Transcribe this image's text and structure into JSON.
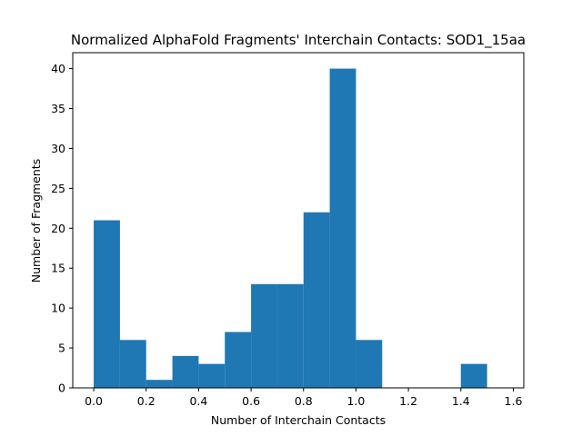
{
  "chart_data": {
    "type": "bar",
    "title": "Normalized AlphaFold Fragments' Interchain Contacts: SOD1_15aa",
    "xlabel": "Number of Interchain Contacts",
    "ylabel": "Number of Fragments",
    "xlim": [
      -0.08,
      1.64
    ],
    "ylim": [
      0,
      42
    ],
    "xticks": [
      "0.0",
      "0.2",
      "0.4",
      "0.6",
      "0.8",
      "1.0",
      "1.2",
      "1.4",
      "1.6"
    ],
    "yticks": [
      "0",
      "5",
      "10",
      "15",
      "20",
      "25",
      "30",
      "35",
      "40"
    ],
    "bar_color": "#1f77b4",
    "bins": [
      {
        "start": 0.0,
        "end": 0.1,
        "count": 21
      },
      {
        "start": 0.1,
        "end": 0.2,
        "count": 6
      },
      {
        "start": 0.2,
        "end": 0.3,
        "count": 1
      },
      {
        "start": 0.3,
        "end": 0.4,
        "count": 4
      },
      {
        "start": 0.4,
        "end": 0.5,
        "count": 3
      },
      {
        "start": 0.5,
        "end": 0.6,
        "count": 7
      },
      {
        "start": 0.6,
        "end": 0.7,
        "count": 13
      },
      {
        "start": 0.7,
        "end": 0.8,
        "count": 13
      },
      {
        "start": 0.8,
        "end": 0.9,
        "count": 22
      },
      {
        "start": 0.9,
        "end": 1.0,
        "count": 40
      },
      {
        "start": 1.0,
        "end": 1.1,
        "count": 6
      },
      {
        "start": 1.1,
        "end": 1.2,
        "count": 0
      },
      {
        "start": 1.2,
        "end": 1.3,
        "count": 0
      },
      {
        "start": 1.3,
        "end": 1.4,
        "count": 0
      },
      {
        "start": 1.4,
        "end": 1.5,
        "count": 3
      }
    ],
    "grid": false,
    "legend": "none"
  }
}
